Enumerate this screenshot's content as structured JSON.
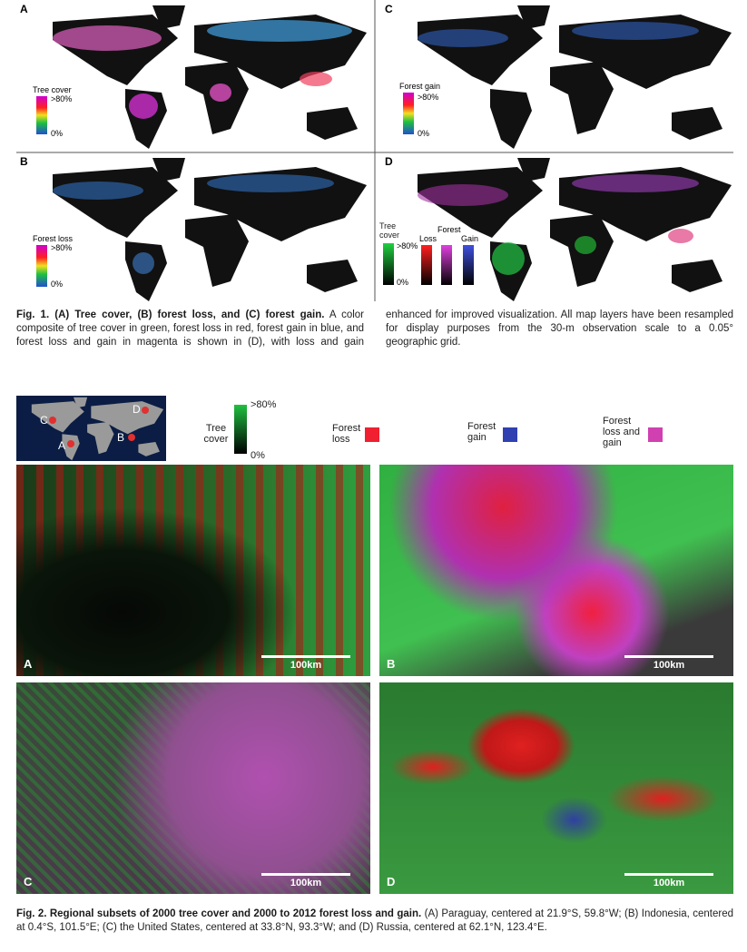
{
  "figure1": {
    "panels": [
      {
        "label": "A",
        "legend_title": "Tree cover",
        "legend_max": ">80%",
        "legend_min": "0%"
      },
      {
        "label": "C",
        "legend_title": "Forest gain",
        "legend_max": ">80%",
        "legend_min": "0%"
      },
      {
        "label": "B",
        "legend_title": "Forest loss",
        "legend_max": ">80%",
        "legend_min": "0%"
      },
      {
        "label": "D",
        "legend_labels": [
          "Tree cover",
          "Loss",
          "Forest",
          "Gain"
        ],
        "legend_max": ">80%",
        "legend_min": "0%"
      }
    ],
    "caption_bold": "Fig. 1. (A) Tree cover, (B) forest loss, and (C) forest gain.",
    "caption": "A color composite of tree cover in green, forest loss in red, forest gain in blue, and forest loss and gain in magenta is shown in (D), with loss and gain enhanced for improved visualization. All map layers have been resampled for display purposes from the 30-m observation scale to a 0.05° geographic grid."
  },
  "figure2": {
    "legend": {
      "inset_labels": [
        "C",
        "D",
        "A",
        "B"
      ],
      "tree_cover": "Tree cover",
      "max": ">80%",
      "min": "0%",
      "forest_loss": "Forest loss",
      "forest_gain": "Forest gain",
      "loss_and_gain": "Forest loss and gain"
    },
    "panels": [
      {
        "label": "A",
        "scale": "100km"
      },
      {
        "label": "B",
        "scale": "100km"
      },
      {
        "label": "C",
        "scale": "100km"
      },
      {
        "label": "D",
        "scale": "100km"
      }
    ],
    "caption_bold": "Fig. 2. Regional subsets of 2000 tree cover and 2000 to 2012 forest loss and gain.",
    "caption": "(A) Paraguay, centered at 21.9°S, 59.8°W; (B) Indonesia, centered at 0.4°S, 101.5°E; (C) the United States, centered at 33.8°N, 93.3°W; and (D) Russia, centered at 62.1°N, 123.4°E."
  }
}
